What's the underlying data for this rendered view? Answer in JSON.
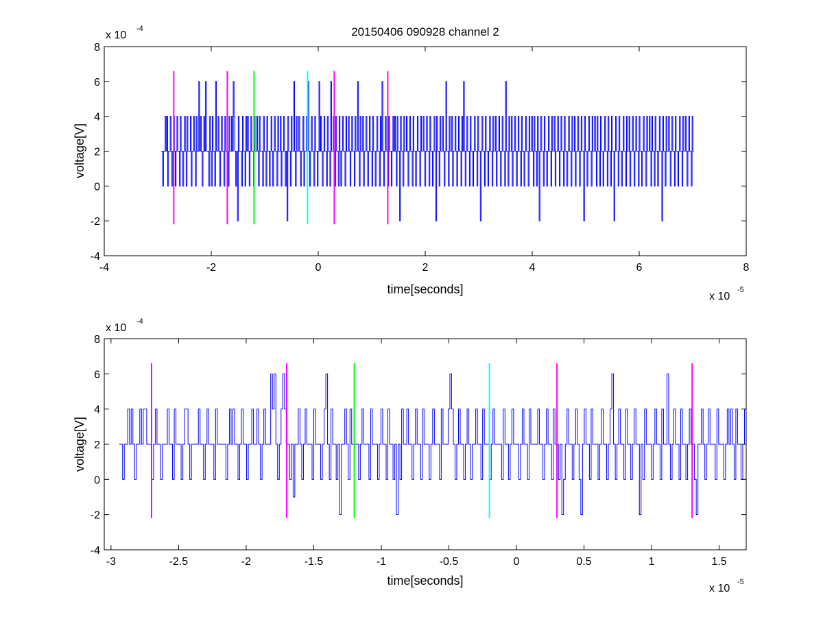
{
  "figure": {
    "title": "20150406 090928 channel 2"
  },
  "chart_data": [
    {
      "type": "line",
      "xlabel": "time[seconds]",
      "ylabel": "voltage[V]",
      "x_exponent_label": "x 10",
      "x_exponent": "-5",
      "y_exponent_label": "x 10",
      "y_exponent": "-4",
      "xlim": [
        -4,
        8
      ],
      "ylim": [
        -4,
        8
      ],
      "xticks": [
        -4,
        -2,
        0,
        2,
        4,
        6,
        8
      ],
      "yticks": [
        -4,
        -2,
        0,
        2,
        4,
        6,
        8
      ],
      "grid": false,
      "series": [
        {
          "color": "#0000ff",
          "x_start": -2.94,
          "x_end": 7.02,
          "values": [
            2,
            2,
            0,
            2,
            2,
            4,
            2,
            4,
            0,
            2,
            2,
            4,
            2,
            0,
            2,
            4,
            2,
            0,
            2,
            4,
            2,
            2,
            0,
            4,
            2,
            2,
            0,
            2,
            4,
            2,
            0,
            4,
            2,
            2,
            2,
            4,
            0,
            2,
            2,
            4,
            2,
            0,
            4,
            2,
            2,
            6,
            2,
            4,
            2,
            0,
            2,
            4,
            2,
            6,
            2,
            2,
            2,
            0,
            4,
            2,
            0,
            4,
            2,
            2,
            0,
            6,
            2,
            2,
            4,
            2,
            0,
            2,
            4,
            2,
            2,
            0,
            4,
            2,
            2,
            2,
            0,
            4,
            2,
            2,
            4,
            2,
            6,
            4,
            2,
            0,
            2,
            -2,
            4,
            2,
            2,
            2,
            0,
            4,
            2,
            2,
            0,
            4,
            2,
            4,
            2,
            0,
            2,
            4,
            2,
            2,
            0,
            4,
            2,
            2,
            4,
            2,
            0,
            4,
            2,
            2,
            2,
            0,
            4,
            2,
            2,
            0,
            4,
            2,
            2,
            0,
            2,
            4,
            2,
            0,
            2,
            4,
            2,
            2,
            0,
            4,
            2,
            2,
            4,
            0,
            2,
            2,
            4,
            2,
            0,
            2,
            -2,
            4,
            2,
            2,
            0,
            4,
            2,
            2,
            6,
            2,
            0,
            4,
            2,
            2,
            4,
            2,
            0,
            2,
            2,
            4,
            0,
            2,
            2,
            4,
            2,
            6,
            2,
            0,
            2,
            4,
            2,
            2,
            0,
            4,
            2,
            2,
            0,
            2,
            6,
            2,
            4,
            2,
            0,
            2,
            4,
            2,
            2,
            0,
            4,
            2,
            2,
            0,
            6,
            2,
            2,
            4,
            2,
            0,
            4,
            2,
            2,
            0,
            4,
            2,
            0,
            2,
            4,
            2,
            2,
            0,
            4,
            2,
            2,
            4,
            2,
            0,
            2,
            4,
            2,
            2,
            0,
            4,
            2,
            2,
            6,
            2,
            0,
            4,
            2,
            2,
            4,
            0,
            2,
            2,
            4,
            2,
            0,
            2,
            4,
            2,
            2,
            0,
            4,
            2,
            2,
            0,
            2,
            4,
            2,
            2,
            0,
            4,
            2,
            6,
            2,
            0,
            2,
            4,
            2,
            2,
            0,
            4,
            2,
            2,
            0,
            2,
            4,
            2,
            4,
            2,
            0,
            4,
            2,
            2,
            -2,
            4,
            2,
            2,
            0,
            4,
            2,
            2,
            4,
            2,
            0,
            2,
            4,
            2,
            2,
            0,
            4,
            2,
            2,
            0,
            2,
            4,
            2,
            2,
            0,
            4,
            2,
            2,
            4,
            2,
            0,
            2,
            4,
            2,
            2,
            0,
            4,
            2,
            2,
            0,
            2,
            4,
            2,
            -2,
            4,
            2,
            2,
            0,
            4,
            2,
            2,
            4,
            2,
            0,
            2,
            6,
            2,
            2,
            0,
            4,
            2,
            2,
            4,
            0,
            2,
            2,
            4,
            2,
            0,
            2,
            4,
            2,
            2,
            0,
            4,
            2,
            6,
            2,
            0,
            2,
            4,
            2,
            2,
            0,
            4,
            2,
            2,
            0,
            2,
            4,
            2,
            2,
            0,
            4,
            2,
            2,
            -2,
            2,
            4,
            2,
            2,
            0,
            4,
            2,
            2,
            0,
            2,
            4,
            2,
            2,
            0,
            4,
            2,
            2,
            4,
            0,
            2,
            2,
            4,
            2,
            0,
            2,
            4,
            2,
            2,
            0,
            6,
            2,
            2,
            0,
            4,
            2,
            2,
            4,
            0,
            2,
            2,
            4,
            2,
            0,
            2,
            4,
            2,
            2,
            0,
            4,
            2,
            2,
            0,
            2,
            4,
            2,
            2,
            0,
            4,
            2,
            2,
            4,
            2,
            0,
            4,
            2,
            2,
            0,
            4,
            2,
            -2,
            2,
            4,
            2,
            2,
            0,
            4,
            2,
            2,
            0,
            2,
            4,
            2,
            2,
            0,
            4,
            2,
            2,
            4,
            0,
            2,
            2,
            4,
            2,
            0,
            2,
            4,
            2,
            2,
            0,
            4,
            2,
            2,
            0,
            2,
            4,
            2,
            2,
            0,
            4,
            2,
            2,
            4,
            0,
            2,
            2,
            4,
            2,
            0,
            2,
            4,
            2,
            2,
            -2,
            4,
            2,
            2,
            0,
            2,
            4,
            2,
            2,
            0,
            4,
            2,
            2,
            4,
            2,
            0,
            4,
            2,
            2,
            0,
            4,
            2,
            2,
            0,
            2,
            4,
            2,
            2,
            0,
            4,
            2,
            2,
            0,
            4,
            2,
            2,
            -2,
            2,
            4,
            2,
            2,
            0,
            4,
            2,
            2,
            0,
            2,
            4,
            2,
            2,
            0,
            4,
            2,
            2,
            4,
            0,
            2,
            2,
            4,
            2,
            0,
            2,
            4,
            2,
            2,
            0,
            4,
            2,
            2,
            0,
            2,
            4,
            2,
            2,
            0,
            4,
            2,
            2,
            4,
            2,
            0,
            4,
            2,
            2,
            0,
            4,
            2,
            2,
            0,
            2,
            4,
            2,
            2,
            -2,
            4,
            2,
            2,
            0,
            4,
            2,
            2,
            4,
            2,
            0,
            2,
            4,
            2,
            2,
            0,
            4,
            2,
            2,
            0,
            2,
            4,
            2,
            2,
            0,
            4,
            2,
            2,
            4,
            2,
            0,
            2,
            4,
            2,
            2,
            0,
            4,
            2
          ]
        }
      ],
      "markers": [
        {
          "x": -2.7,
          "color": "#ff00ff"
        },
        {
          "x": -1.7,
          "color": "#ff00ff"
        },
        {
          "x": -1.2,
          "color": "#00ff00"
        },
        {
          "x": -0.2,
          "color": "#00ffff"
        },
        {
          "x": 0.3,
          "color": "#ff00ff"
        },
        {
          "x": 1.3,
          "color": "#ff00ff"
        }
      ],
      "marker_range": [
        -2.2,
        6.6
      ]
    },
    {
      "type": "line",
      "xlabel": "time[seconds]",
      "ylabel": "voltage[V]",
      "x_exponent_label": "x 10",
      "x_exponent": "-5",
      "y_exponent_label": "x 10",
      "y_exponent": "-4",
      "xlim": [
        -3.05,
        1.7
      ],
      "ylim": [
        -4,
        8
      ],
      "xticks": [
        -3,
        -2.5,
        -2,
        -1.5,
        -1,
        -0.5,
        0,
        0.5,
        1,
        1.5
      ],
      "xtick_labels": [
        "-3",
        "-2.5",
        "-2",
        "-1.5",
        "-1",
        "-0.5",
        "0",
        "0.5",
        "1",
        "1.5"
      ],
      "yticks": [
        -4,
        -2,
        0,
        2,
        4,
        6,
        8
      ],
      "grid": false,
      "series": [
        {
          "color": "#0000ff",
          "x_start": -2.94,
          "x_end": 1.7,
          "values": [
            2,
            2,
            0,
            2,
            2,
            4,
            2,
            4,
            2,
            0,
            2,
            2,
            4,
            2,
            4,
            4,
            2,
            2,
            2,
            0,
            2,
            4,
            2,
            2,
            0,
            2,
            2,
            2,
            4,
            2,
            2,
            0,
            4,
            2,
            2,
            2,
            0,
            2,
            4,
            4,
            2,
            0,
            2,
            2,
            2,
            2,
            4,
            2,
            2,
            0,
            2,
            4,
            2,
            2,
            2,
            0,
            4,
            2,
            2,
            2,
            2,
            2,
            0,
            2,
            4,
            2,
            4,
            2,
            2,
            0,
            2,
            4,
            2,
            2,
            0,
            2,
            2,
            4,
            2,
            2,
            4,
            2,
            0,
            2,
            4,
            2,
            2,
            2,
            6,
            4,
            6,
            2,
            0,
            2,
            4,
            6,
            4,
            2,
            2,
            0,
            2,
            -1,
            2,
            2,
            4,
            2,
            0,
            2,
            4,
            2,
            2,
            2,
            0,
            4,
            2,
            2,
            2,
            0,
            2,
            4,
            6,
            2,
            0,
            4,
            2,
            2,
            0,
            2,
            -2,
            2,
            2,
            4,
            2,
            0,
            4,
            2,
            2,
            2,
            2,
            0,
            2,
            4,
            2,
            2,
            2,
            0,
            4,
            2,
            2,
            2,
            0,
            2,
            4,
            2,
            2,
            0,
            4,
            2,
            2,
            0,
            2,
            -2,
            2,
            0,
            4,
            2,
            2,
            4,
            2,
            2,
            0,
            2,
            4,
            2,
            2,
            0,
            4,
            2,
            2,
            2,
            0,
            2,
            4,
            2,
            2,
            2,
            0,
            4,
            2,
            2,
            2,
            4,
            6,
            4,
            2,
            0,
            2,
            4,
            2,
            2,
            0,
            2,
            4,
            2,
            0,
            2,
            2,
            4,
            2,
            2,
            0,
            4,
            2,
            2,
            2,
            0,
            2,
            4,
            2,
            2,
            2,
            2,
            0,
            4,
            2,
            2,
            0,
            2,
            4,
            2,
            2,
            2,
            0,
            2,
            4,
            2,
            2,
            0,
            4,
            2,
            2,
            2,
            2,
            4,
            2,
            2,
            0,
            2,
            4,
            2,
            2,
            0,
            4,
            2,
            2,
            0,
            2,
            -2,
            0,
            2,
            4,
            2,
            2,
            0,
            2,
            4,
            2,
            0,
            -2,
            2,
            4,
            2,
            2,
            0,
            4,
            2,
            2,
            2,
            0,
            2,
            4,
            2,
            2,
            0,
            2,
            4,
            6,
            2,
            0,
            2,
            4,
            2,
            2,
            0,
            4,
            2,
            2,
            0,
            2,
            4,
            2,
            2,
            -2,
            2,
            0,
            4,
            2,
            2,
            2,
            0,
            2,
            4,
            2,
            2,
            0,
            4,
            2,
            2,
            6,
            2,
            0,
            2,
            4,
            2,
            2,
            0,
            4,
            2,
            2,
            0,
            2,
            4,
            2,
            2,
            0,
            -2,
            2,
            2,
            4,
            2,
            0,
            2,
            4,
            2,
            2,
            2,
            0,
            4,
            2,
            2,
            2,
            0,
            2,
            4,
            2,
            4,
            2,
            0,
            4,
            2,
            2,
            0,
            2,
            4
          ]
        }
      ],
      "markers": [
        {
          "x": -2.7,
          "color": "#ff00ff"
        },
        {
          "x": -1.7,
          "color": "#ff00ff"
        },
        {
          "x": -1.2,
          "color": "#00ff00"
        },
        {
          "x": -0.2,
          "color": "#00ffff"
        },
        {
          "x": 0.3,
          "color": "#ff00ff"
        },
        {
          "x": 1.3,
          "color": "#ff00ff"
        }
      ],
      "marker_range": [
        -2.2,
        6.6
      ]
    }
  ]
}
